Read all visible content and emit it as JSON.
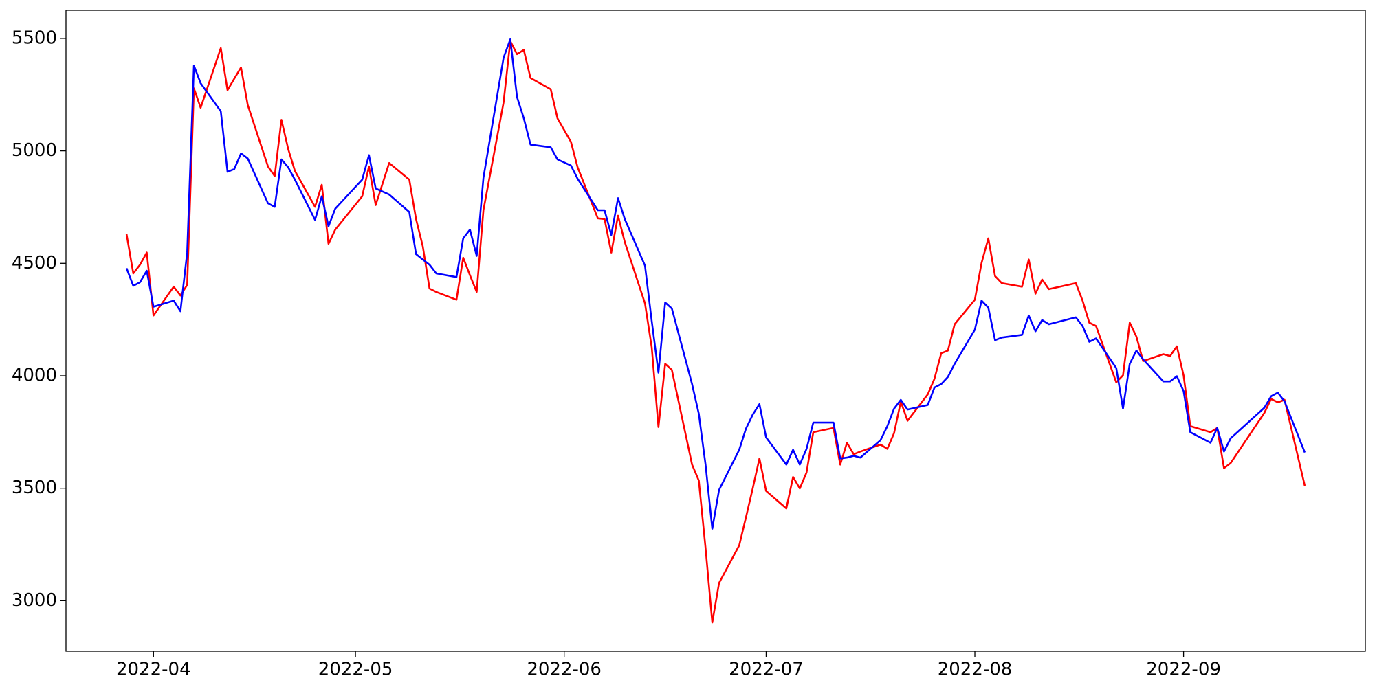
{
  "chart_data": {
    "type": "line",
    "x": [
      "2022-03-28",
      "2022-03-29",
      "2022-03-30",
      "2022-03-31",
      "2022-04-01",
      "2022-04-04",
      "2022-04-05",
      "2022-04-06",
      "2022-04-07",
      "2022-04-08",
      "2022-04-11",
      "2022-04-12",
      "2022-04-13",
      "2022-04-14",
      "2022-04-15",
      "2022-04-18",
      "2022-04-19",
      "2022-04-20",
      "2022-04-21",
      "2022-04-22",
      "2022-04-25",
      "2022-04-26",
      "2022-04-27",
      "2022-04-28",
      "2022-05-02",
      "2022-05-03",
      "2022-05-04",
      "2022-05-06",
      "2022-05-09",
      "2022-05-10",
      "2022-05-11",
      "2022-05-12",
      "2022-05-13",
      "2022-05-16",
      "2022-05-17",
      "2022-05-18",
      "2022-05-19",
      "2022-05-20",
      "2022-05-23",
      "2022-05-24",
      "2022-05-25",
      "2022-05-26",
      "2022-05-27",
      "2022-05-30",
      "2022-05-31",
      "2022-06-02",
      "2022-06-03",
      "2022-06-06",
      "2022-06-07",
      "2022-06-08",
      "2022-06-09",
      "2022-06-10",
      "2022-06-13",
      "2022-06-14",
      "2022-06-15",
      "2022-06-16",
      "2022-06-17",
      "2022-06-20",
      "2022-06-21",
      "2022-06-22",
      "2022-06-23",
      "2022-06-24",
      "2022-06-27",
      "2022-06-28",
      "2022-06-29",
      "2022-06-30",
      "2022-07-01",
      "2022-07-04",
      "2022-07-05",
      "2022-07-06",
      "2022-07-07",
      "2022-07-08",
      "2022-07-11",
      "2022-07-12",
      "2022-07-13",
      "2022-07-14",
      "2022-07-15",
      "2022-07-18",
      "2022-07-19",
      "2022-07-20",
      "2022-07-21",
      "2022-07-22",
      "2022-07-25",
      "2022-07-26",
      "2022-07-27",
      "2022-07-28",
      "2022-07-29",
      "2022-08-01",
      "2022-08-02",
      "2022-08-03",
      "2022-08-04",
      "2022-08-05",
      "2022-08-08",
      "2022-08-09",
      "2022-08-10",
      "2022-08-11",
      "2022-08-12",
      "2022-08-16",
      "2022-08-17",
      "2022-08-18",
      "2022-08-19",
      "2022-08-22",
      "2022-08-23",
      "2022-08-24",
      "2022-08-25",
      "2022-08-26",
      "2022-08-29",
      "2022-08-30",
      "2022-08-31",
      "2022-09-01",
      "2022-09-02",
      "2022-09-05",
      "2022-09-06",
      "2022-09-07",
      "2022-09-08",
      "2022-09-13",
      "2022-09-14",
      "2022-09-15",
      "2022-09-16",
      "2022-09-19"
    ],
    "series": [
      {
        "color": "#ff0000",
        "values": [
          4630,
          4455,
          4494,
          4548,
          4268,
          4396,
          4357,
          4404,
          5278,
          5192,
          5457,
          5270,
          5321,
          5371,
          5204,
          4931,
          4888,
          5138,
          5009,
          4911,
          4751,
          4849,
          4587,
          4650,
          4798,
          4931,
          4759,
          4946,
          4872,
          4697,
          4576,
          4388,
          4373,
          4338,
          4525,
          4447,
          4373,
          4736,
          5215,
          5488,
          5430,
          5449,
          5324,
          5274,
          5145,
          5040,
          4927,
          4700,
          4697,
          4548,
          4712,
          4595,
          4322,
          4127,
          3772,
          4053,
          4026,
          3605,
          3534,
          3234,
          2903,
          3078,
          3246,
          3371,
          3499,
          3632,
          3488,
          3410,
          3550,
          3499,
          3570,
          3749,
          3768,
          3605,
          3702,
          3651,
          3663,
          3694,
          3675,
          3745,
          3885,
          3800,
          3917,
          3987,
          4100,
          4112,
          4229,
          4338,
          4502,
          4611,
          4443,
          4412,
          4396,
          4517,
          4365,
          4428,
          4385,
          4412,
          4334,
          4236,
          4221,
          3971,
          4002,
          4236,
          4174,
          4065,
          4096,
          4088,
          4131,
          4002,
          3776,
          3749,
          3768,
          3589,
          3612,
          3835,
          3897,
          3882,
          3893,
          3511
        ]
      },
      {
        "color": "#0000ff",
        "values": [
          4478,
          4400,
          4416,
          4467,
          4307,
          4334,
          4287,
          4548,
          5379,
          5301,
          5176,
          4907,
          4919,
          4989,
          4966,
          4767,
          4751,
          4962,
          4927,
          4872,
          4693,
          4798,
          4665,
          4743,
          4872,
          4981,
          4833,
          4806,
          4728,
          4541,
          4517,
          4494,
          4455,
          4439,
          4611,
          4650,
          4533,
          4880,
          5414,
          5496,
          5239,
          5145,
          5028,
          5016,
          4962,
          4935,
          4876,
          4736,
          4736,
          4626,
          4790,
          4697,
          4490,
          4244,
          4014,
          4326,
          4299,
          3963,
          3831,
          3605,
          3320,
          3492,
          3671,
          3765,
          3827,
          3874,
          3726,
          3605,
          3671,
          3605,
          3675,
          3792,
          3792,
          3632,
          3636,
          3644,
          3636,
          3714,
          3776,
          3854,
          3893,
          3850,
          3870,
          3948,
          3963,
          3995,
          4053,
          4205,
          4334,
          4303,
          4158,
          4170,
          4182,
          4268,
          4198,
          4248,
          4229,
          4260,
          4221,
          4151,
          4166,
          4034,
          3854,
          4053,
          4112,
          4073,
          3975,
          3975,
          3998,
          3932,
          3749,
          3702,
          3768,
          3663,
          3722,
          3858,
          3909,
          3925,
          3886,
          3659
        ]
      }
    ],
    "xlim": [
      "2022-03-19",
      "2022-09-28"
    ],
    "xticks": [
      {
        "value": "2022-04-01",
        "label": "2022-04"
      },
      {
        "value": "2022-05-01",
        "label": "2022-05"
      },
      {
        "value": "2022-06-01",
        "label": "2022-06"
      },
      {
        "value": "2022-07-01",
        "label": "2022-07"
      },
      {
        "value": "2022-08-01",
        "label": "2022-08"
      },
      {
        "value": "2022-09-01",
        "label": "2022-09"
      }
    ],
    "ylim": [
      2775,
      5625
    ],
    "yticks": [
      3000,
      3500,
      4000,
      4500,
      5000,
      5500
    ],
    "grid": false
  }
}
